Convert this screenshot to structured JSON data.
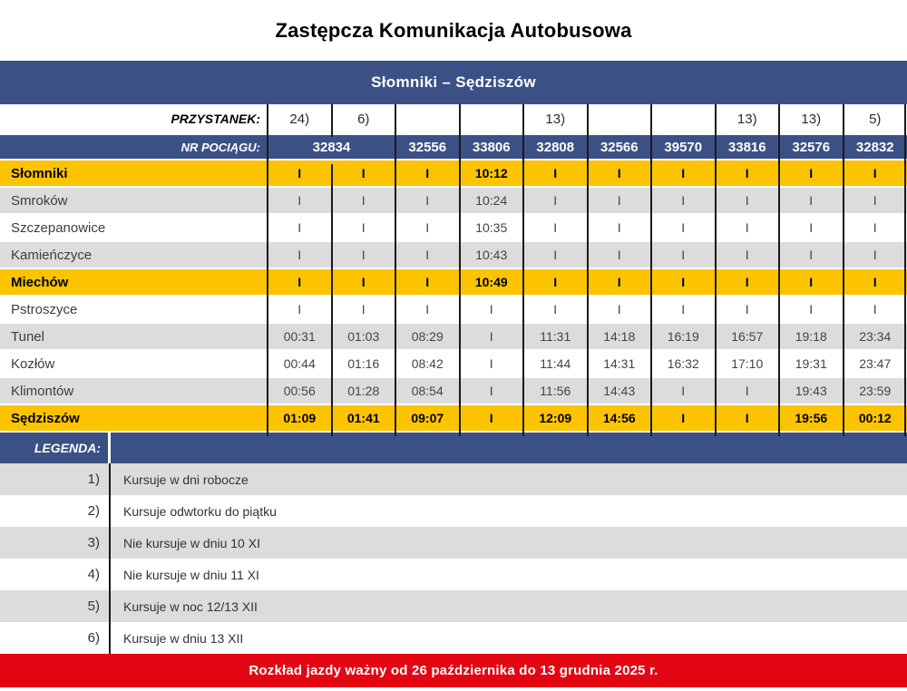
{
  "title": "Zastępcza Komunikacja Autobusowa",
  "route_header": "Słomniki – Sędziszów",
  "table": {
    "przystanek_label": "PRZYSTANEK:",
    "nr_pociagu_label": "NR POCIĄGU:",
    "footnotes": [
      "24)",
      "6)",
      "",
      "",
      "13)",
      "",
      "",
      "13)",
      "13)",
      "5)"
    ],
    "trains": [
      {
        "number": "32834",
        "span": 2
      },
      {
        "number": "32556",
        "span": 1
      },
      {
        "number": "33806",
        "span": 1
      },
      {
        "number": "32808",
        "span": 1
      },
      {
        "number": "32566",
        "span": 1
      },
      {
        "number": "39570",
        "span": 1
      },
      {
        "number": "33816",
        "span": 1
      },
      {
        "number": "32576",
        "span": 1
      },
      {
        "number": "32832",
        "span": 1
      }
    ],
    "stations": [
      {
        "name": "Słomniki",
        "bg": "yellow",
        "times": [
          "I",
          "I",
          "I",
          "10:12",
          "I",
          "I",
          "I",
          "I",
          "I",
          "I"
        ]
      },
      {
        "name": "Smroków",
        "bg": "gray",
        "times": [
          "I",
          "I",
          "I",
          "10:24",
          "I",
          "I",
          "I",
          "I",
          "I",
          "I"
        ]
      },
      {
        "name": "Szczepanowice",
        "bg": "white",
        "times": [
          "I",
          "I",
          "I",
          "10:35",
          "I",
          "I",
          "I",
          "I",
          "I",
          "I"
        ]
      },
      {
        "name": "Kamieńczyce",
        "bg": "gray",
        "times": [
          "I",
          "I",
          "I",
          "10:43",
          "I",
          "I",
          "I",
          "I",
          "I",
          "I"
        ]
      },
      {
        "name": "Miechów",
        "bg": "yellow",
        "times": [
          "I",
          "I",
          "I",
          "10:49",
          "I",
          "I",
          "I",
          "I",
          "I",
          "I"
        ]
      },
      {
        "name": "Pstroszyce",
        "bg": "white",
        "times": [
          "I",
          "I",
          "I",
          "I",
          "I",
          "I",
          "I",
          "I",
          "I",
          "I"
        ]
      },
      {
        "name": "Tunel",
        "bg": "gray",
        "times": [
          "00:31",
          "01:03",
          "08:29",
          "I",
          "11:31",
          "14:18",
          "16:19",
          "16:57",
          "19:18",
          "23:34"
        ]
      },
      {
        "name": "Kozłów",
        "bg": "white",
        "times": [
          "00:44",
          "01:16",
          "08:42",
          "I",
          "11:44",
          "14:31",
          "16:32",
          "17:10",
          "19:31",
          "23:47"
        ]
      },
      {
        "name": "Klimontów",
        "bg": "gray",
        "times": [
          "00:56",
          "01:28",
          "08:54",
          "I",
          "11:56",
          "14:43",
          "I",
          "I",
          "19:43",
          "23:59"
        ]
      },
      {
        "name": "Sędziszów",
        "bg": "yellow",
        "times": [
          "01:09",
          "01:41",
          "09:07",
          "I",
          "12:09",
          "14:56",
          "I",
          "I",
          "19:56",
          "00:12"
        ]
      }
    ]
  },
  "legend": {
    "label": "LEGENDA:",
    "items": [
      {
        "num": "1)",
        "text": "Kursuje w dni robocze"
      },
      {
        "num": "2)",
        "text": "Kursuje odwtorku do piątku"
      },
      {
        "num": "3)",
        "text": "Nie kursuje w dniu 10 XI"
      },
      {
        "num": "4)",
        "text": "Nie kursuje w dniu 11 XI"
      },
      {
        "num": "5)",
        "text": "Kursuje w noc 12/13 XII"
      },
      {
        "num": "6)",
        "text": "Kursuje w dniu 13 XII"
      }
    ]
  },
  "footer": "Rozkład jazdy ważny od 26 października do 13 grudnia 2025 r.",
  "colors": {
    "blue": "#3B5186",
    "yellow": "#FCC400",
    "gray": "#DCDCDC",
    "red": "#E30613",
    "grid_line": "#1A1A1A"
  }
}
